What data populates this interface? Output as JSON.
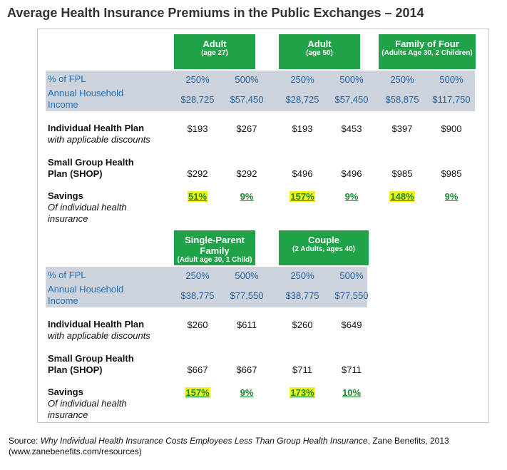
{
  "title": "Average Health Insurance Premiums in the Public Exchanges – 2014",
  "row_labels": {
    "fpl": "% of FPL",
    "income": "Annual Household Income",
    "individual_bold": "Individual Health Plan",
    "individual_italic": "with applicable discounts",
    "small_group": "Small Group Health Plan (SHOP)",
    "savings_bold": "Savings",
    "savings_italic": "Of individual health insurance"
  },
  "groups": [
    {
      "name": "Adult",
      "sub": "(age 27)",
      "fpl": [
        "250%",
        "500%"
      ],
      "income": [
        "$28,725",
        "$57,450"
      ],
      "individual": [
        "$193",
        "$267"
      ],
      "shop": [
        "$292",
        "$292"
      ],
      "savings": [
        "51%",
        "9%"
      ]
    },
    {
      "name": "Adult",
      "sub": "(age 50)",
      "fpl": [
        "250%",
        "500%"
      ],
      "income": [
        "$28,725",
        "$57,450"
      ],
      "individual": [
        "$193",
        "$453"
      ],
      "shop": [
        "$496",
        "$496"
      ],
      "savings": [
        "157%",
        "9%"
      ]
    },
    {
      "name": "Family of Four",
      "sub": "(Adults Age 30, 2 Children)",
      "fpl": [
        "250%",
        "500%"
      ],
      "income": [
        "$58,875",
        "$117,750"
      ],
      "individual": [
        "$397",
        "$900"
      ],
      "shop": [
        "$985",
        "$985"
      ],
      "savings": [
        "148%",
        "9%"
      ]
    },
    {
      "name": "Single-Parent Family",
      "sub": "(Adult age 30, 1 Child)",
      "fpl": [
        "250%",
        "500%"
      ],
      "income": [
        "$38,775",
        "$77,550"
      ],
      "individual": [
        "$260",
        "$611"
      ],
      "shop": [
        "$667",
        "$667"
      ],
      "savings": [
        "157%",
        "9%"
      ]
    },
    {
      "name": "Couple",
      "sub": "(2 Adults, ages 40)",
      "fpl": [
        "250%",
        "500%"
      ],
      "income": [
        "$38,775",
        "$77,550"
      ],
      "individual": [
        "$260",
        "$649"
      ],
      "shop": [
        "$711",
        "$711"
      ],
      "savings": [
        "173%",
        "10%"
      ]
    }
  ],
  "source": {
    "prefix": "Source: ",
    "italic": "Why Individual Health Insurance Costs Employees Less Than Group Health Insurance",
    "suffix": ", Zane Benefits, 2013",
    "url": "(www.zanebenefits.com/resources)"
  },
  "colors": {
    "header_green": "#1fa248",
    "band_gray": "#cdd3dd",
    "label_blue": "#1f6fb2",
    "savings_green": "#1a8a2e",
    "highlight_yellow": "#f0f21a"
  }
}
